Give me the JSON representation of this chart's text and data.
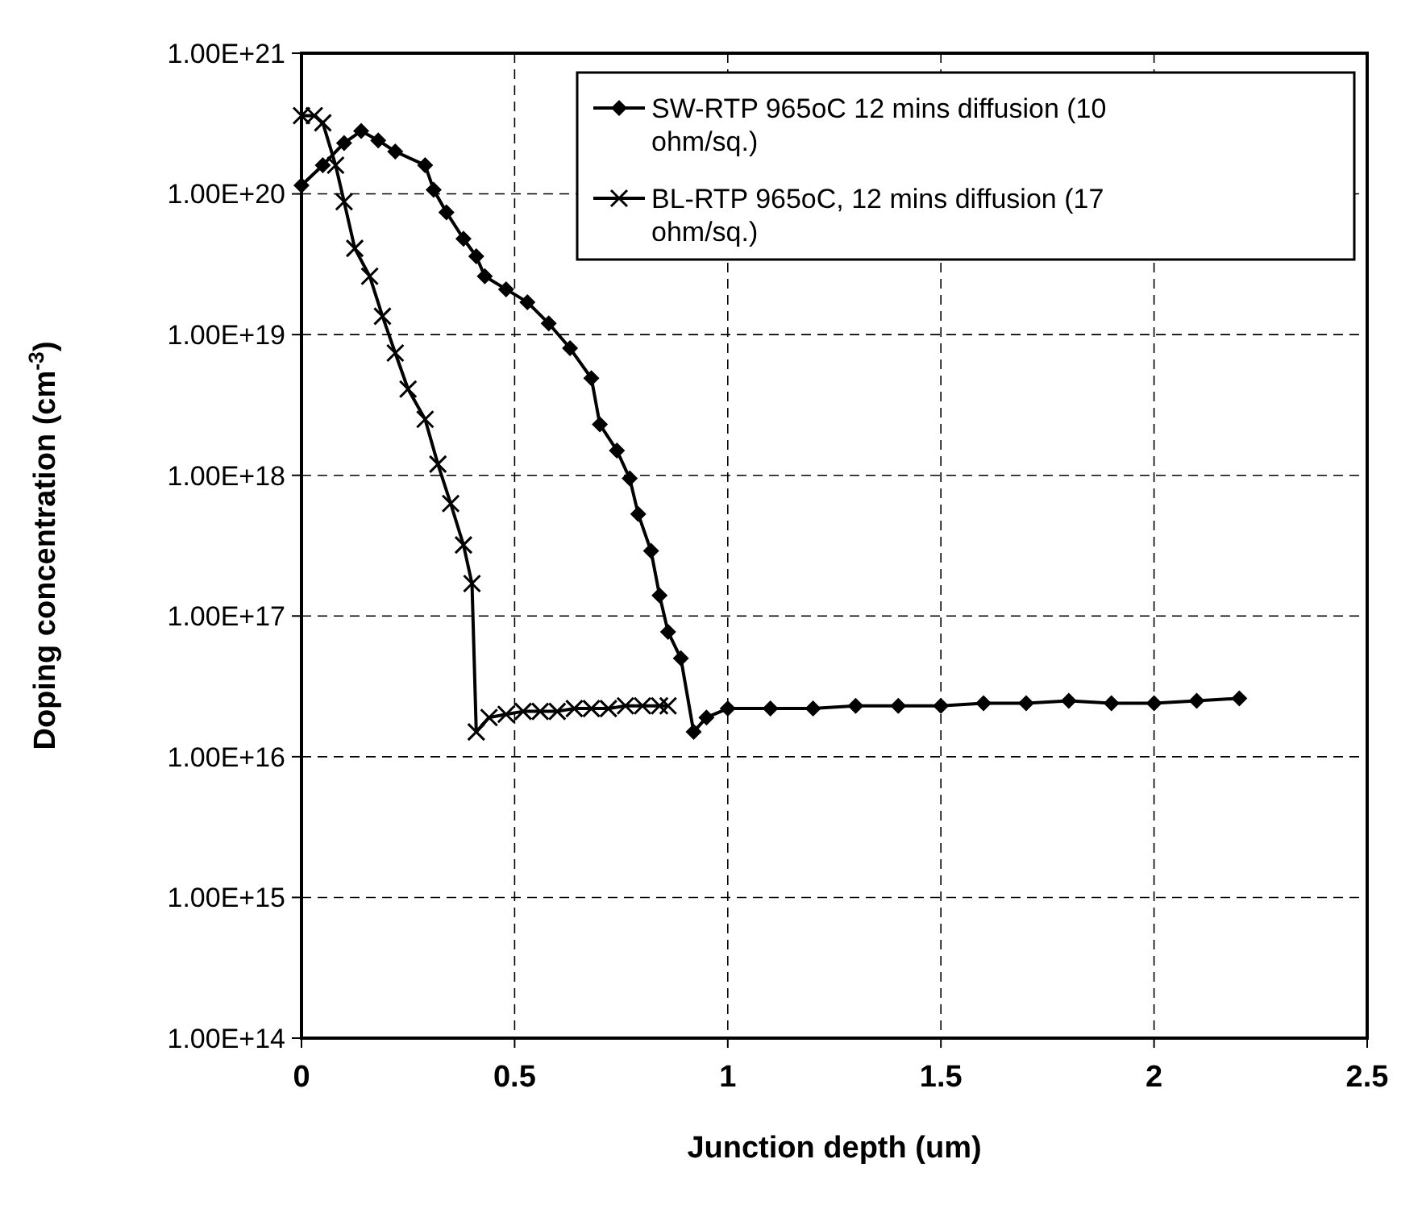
{
  "chart_data": {
    "type": "line",
    "xlabel": "Junction depth (um)",
    "ylabel": "Doping concentration (cm$^{-3}$)",
    "log": "y",
    "grid": true,
    "legend": "top right",
    "line_style": "solid",
    "xlim": [
      0,
      2.5
    ],
    "xticks": [
      0,
      0.5,
      1,
      1.5,
      2,
      2.5
    ],
    "ylim": [
      100000000000000.0,
      1e+21
    ],
    "yticks": [
      {
        "value": 100000000000000.0,
        "label": "1.00E+14"
      },
      {
        "value": 1000000000000000.0,
        "label": "1.00E+15"
      },
      {
        "value": 1e+16,
        "label": "1.00E+16"
      },
      {
        "value": 1e+17,
        "label": "1.00E+17"
      },
      {
        "value": 1e+18,
        "label": "1.00E+18"
      },
      {
        "value": 1e+19,
        "label": "1.00E+19"
      },
      {
        "value": 1e+20,
        "label": "1.00E+20"
      },
      {
        "value": 1e+21,
        "label": "1.00E+21"
      }
    ],
    "series": [
      {
        "name": "SW-RTP 965oC 12 mins diffusion (10 ohm/sq.)",
        "color": "#000000",
        "marker": "diamond",
        "x": [
          0,
          0.05,
          0.1,
          0.14,
          0.18,
          0.22,
          0.29,
          0.31,
          0.34,
          0.38,
          0.41,
          0.43,
          0.48,
          0.53,
          0.58,
          0.63,
          0.68,
          0.7,
          0.74,
          0.77,
          0.79,
          0.82,
          0.84,
          0.86,
          0.89,
          0.92,
          0.95,
          1.0,
          1.1,
          1.2,
          1.3,
          1.4,
          1.5,
          1.6,
          1.7,
          1.8,
          1.9,
          2.0,
          2.1,
          2.2
        ],
        "values": [
          1.15e+20,
          1.6e+20,
          2.3e+20,
          2.8e+20,
          2.4e+20,
          2e+20,
          1.6e+20,
          1.07e+20,
          7.4e+19,
          4.8e+19,
          3.6e+19,
          2.6e+19,
          2.1e+19,
          1.7e+19,
          1.2e+19,
          8e+18,
          4.9e+18,
          2.3e+18,
          1.5e+18,
          9.5e+17,
          5.3e+17,
          2.9e+17,
          1.4e+17,
          7.7e+16,
          5e+16,
          1.5e+16,
          1.9e+16,
          2.2e+16,
          2.2e+16,
          2.2e+16,
          2.3e+16,
          2.3e+16,
          2.3e+16,
          2.4e+16,
          2.4e+16,
          2.5e+16,
          2.4e+16,
          2.4e+16,
          2.5e+16,
          2.6e+16
        ]
      },
      {
        "name": "BL-RTP 965oC, 12 mins diffusion (17 ohm/sq.)",
        "color": "#000000",
        "marker": "cross",
        "x": [
          0,
          0.03,
          0.05,
          0.08,
          0.1,
          0.125,
          0.16,
          0.19,
          0.22,
          0.25,
          0.29,
          0.32,
          0.35,
          0.38,
          0.4,
          0.41,
          0.44,
          0.48,
          0.52,
          0.56,
          0.6,
          0.64,
          0.68,
          0.72,
          0.76,
          0.8,
          0.84,
          0.86
        ],
        "values": [
          3.6e+20,
          3.6e+20,
          3.2e+20,
          1.6e+20,
          8.8e+19,
          4.1e+19,
          2.6e+19,
          1.35e+19,
          7.4e+18,
          4.1e+18,
          2.5e+18,
          1.2e+18,
          6.3e+17,
          3.2e+17,
          1.7e+17,
          1.5e+16,
          1.9e+16,
          2e+16,
          2.1e+16,
          2.1e+16,
          2.1e+16,
          2.2e+16,
          2.2e+16,
          2.2e+16,
          2.3e+16,
          2.3e+16,
          2.3e+16,
          2.3e+16
        ]
      }
    ]
  }
}
